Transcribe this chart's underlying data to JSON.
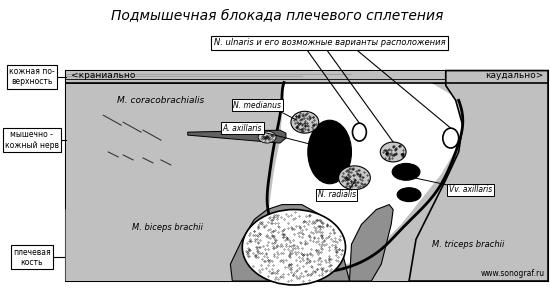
{
  "title": "Подмышечная блокада плечевого сплетения",
  "title_fontsize": 10,
  "bg_color": "#ffffff",
  "label_kranial": "<краниально",
  "label_kaudal": "каудально>",
  "label_skin": "кожная по-\nверхность",
  "label_musculo": "мышечно -\nкожный нерв",
  "label_humerus": "плечевая\nкость",
  "label_coracobrachialis": "M. coracobrachialis",
  "label_biceps": "M. biceps brachii",
  "label_triceps": "M. triceps brachii",
  "label_medianus": "N. medianus",
  "label_axillaris_a": "A. axillaris",
  "label_radialis": "N. radialis",
  "label_vv_axillaris": "Vv. axillaris",
  "label_ulnaris": "N. ulnaris и его возможные варианты расположения",
  "website": "www.sonograf.ru",
  "gray_light": "#c0c0c0",
  "gray_mid": "#909090",
  "gray_dark": "#606060",
  "black": "#000000",
  "white": "#ffffff"
}
